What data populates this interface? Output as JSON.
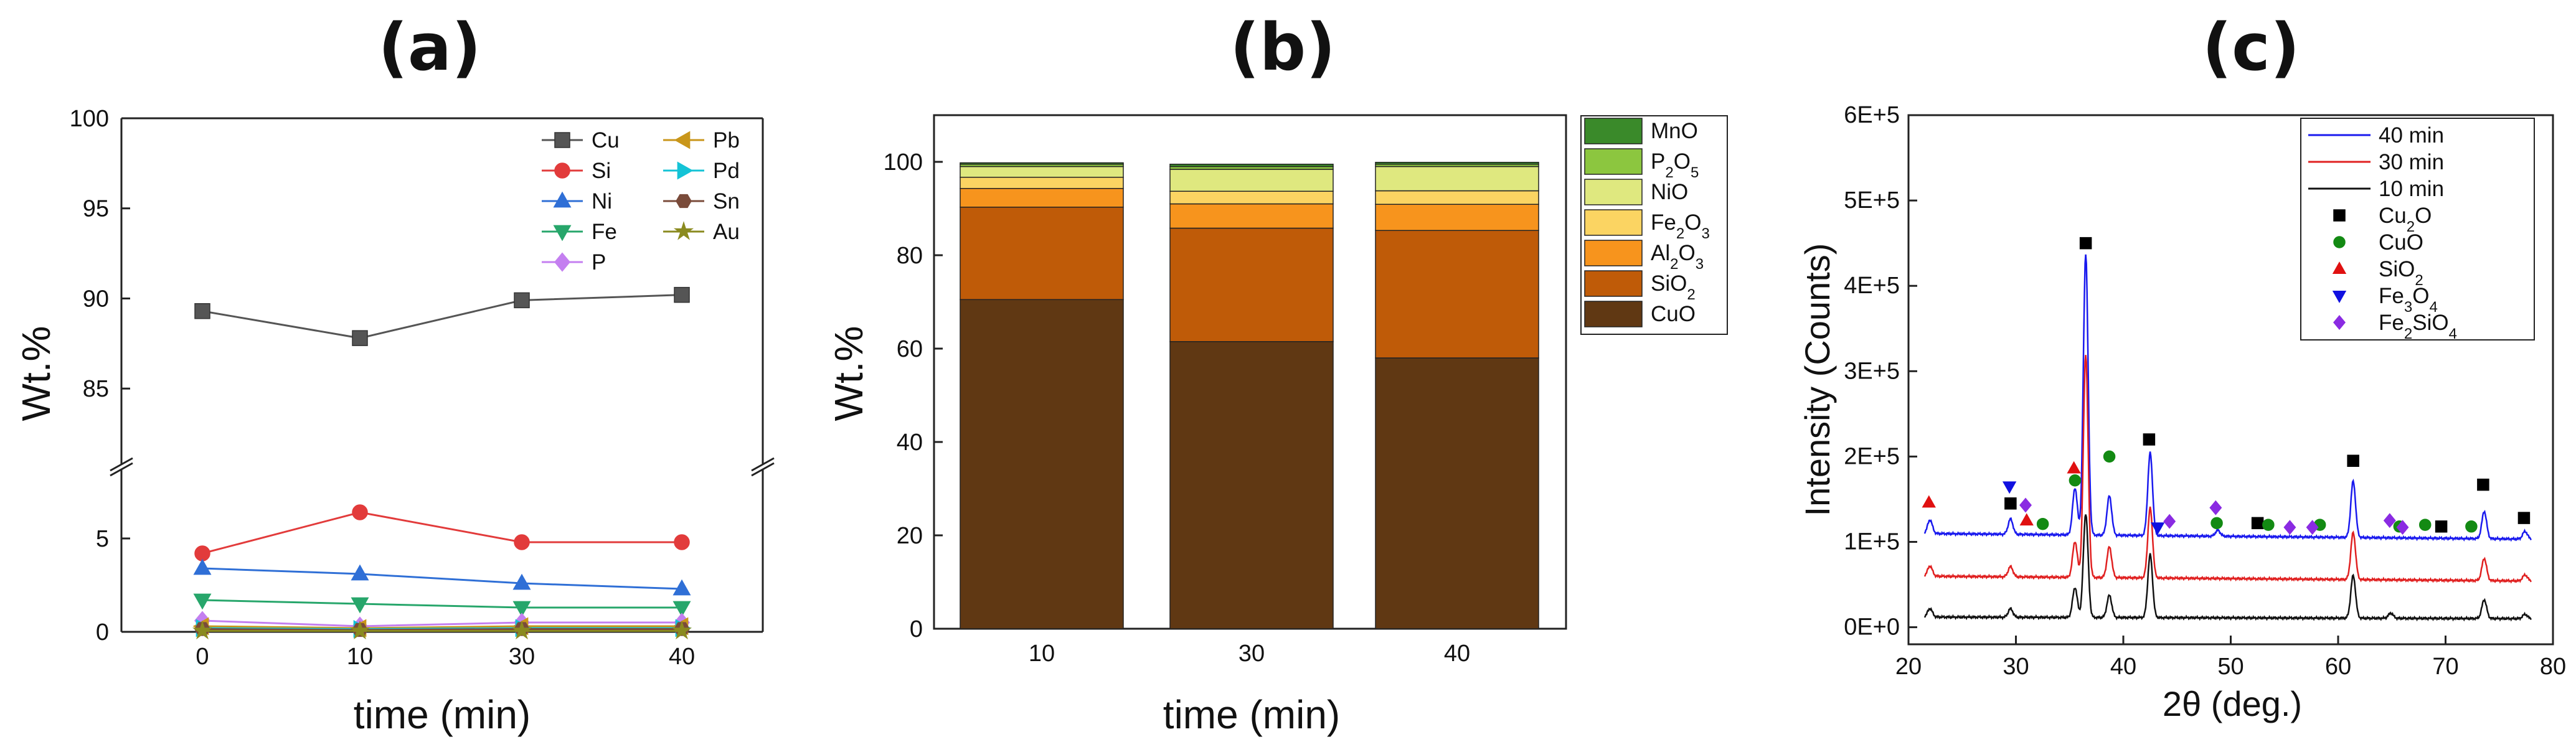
{
  "figure": {
    "panel_labels": [
      "(a)",
      "(b)",
      "(c)"
    ]
  },
  "colors": {
    "a": {
      "Cu": "#555555",
      "Si": "#e23b3b",
      "Ni": "#2f6fd6",
      "Fe": "#27a66b",
      "P": "#c47ff0",
      "Pb": "#c9961a",
      "Pd": "#14c3d6",
      "Sn": "#7a4b3a",
      "Au": "#8a8a1f"
    },
    "b": {
      "CuO": "#603813",
      "SiO2": "#bf5b08",
      "Al2O3": "#f7941d",
      "Fe2O3": "#fbd462",
      "NiO": "#dfe87f",
      "P2O5": "#8cc63f",
      "MnO": "#3a8a2a"
    },
    "c": {
      "40 min": "#1a1aee",
      "30 min": "#e02020",
      "10 min": "#111111",
      "Cu2O": "#000000",
      "CuO": "#138a13",
      "SiO2": "#e01010",
      "Fe3O4": "#1010e0",
      "Fe2SiO4": "#8a2be2"
    }
  },
  "chart_data": [
    {
      "type": "line",
      "panel": "(a)",
      "title": "(a)",
      "xlabel": "time (min)",
      "ylabel": "Wt.%",
      "categories": [
        "0",
        "10",
        "30",
        "40"
      ],
      "axis_break": {
        "lower_range": [
          0,
          8.5
        ],
        "upper_range": [
          81,
          100
        ]
      },
      "yticks_lower": [
        "0",
        "5"
      ],
      "yticks_upper": [
        "85",
        "90",
        "95",
        "100"
      ],
      "series": [
        {
          "name": "Cu",
          "marker": "square",
          "values": [
            89.3,
            87.8,
            89.9,
            90.2
          ]
        },
        {
          "name": "Si",
          "marker": "circle",
          "values": [
            4.2,
            6.4,
            4.8,
            4.8
          ]
        },
        {
          "name": "Ni",
          "marker": "triangle-up",
          "values": [
            3.4,
            3.1,
            2.6,
            2.3
          ]
        },
        {
          "name": "Fe",
          "marker": "triangle-down",
          "values": [
            1.7,
            1.5,
            1.3,
            1.3
          ]
        },
        {
          "name": "P",
          "marker": "diamond",
          "values": [
            0.6,
            0.3,
            0.5,
            0.5
          ]
        },
        {
          "name": "Pb",
          "marker": "triangle-left",
          "values": [
            0.3,
            0.2,
            0.3,
            0.3
          ]
        },
        {
          "name": "Pd",
          "marker": "triangle-right",
          "values": [
            0.2,
            0.15,
            0.2,
            0.2
          ]
        },
        {
          "name": "Sn",
          "marker": "hexagon",
          "values": [
            0.15,
            0.1,
            0.15,
            0.15
          ]
        },
        {
          "name": "Au",
          "marker": "star",
          "values": [
            0.05,
            0.05,
            0.05,
            0.05
          ]
        }
      ],
      "legend_left": [
        "Cu",
        "Si",
        "Ni",
        "Fe",
        "P"
      ],
      "legend_right": [
        "Pb",
        "Pd",
        "Sn",
        "Au"
      ],
      "legend_position": "top-right"
    },
    {
      "type": "bar",
      "stacked": true,
      "panel": "(b)",
      "title": "(b)",
      "xlabel": "time (min)",
      "ylabel": "Wt.%",
      "categories": [
        "10",
        "30",
        "40"
      ],
      "ylim": [
        0,
        110
      ],
      "yticks": [
        0,
        20,
        40,
        60,
        80,
        100
      ],
      "series": [
        {
          "key": "CuO",
          "name": "CuO",
          "sub": "",
          "values": [
            70.5,
            61.5,
            58.0
          ]
        },
        {
          "key": "SiO2",
          "name": "SiO",
          "sub": "2",
          "values": [
            19.8,
            24.3,
            27.3
          ]
        },
        {
          "key": "Al2O3",
          "name": "Al",
          "sub": "2",
          "name2": "O",
          "sub2": "3",
          "values": [
            4.0,
            5.2,
            5.6
          ]
        },
        {
          "key": "Fe2O3",
          "name": "Fe",
          "sub": "2",
          "name2": "O",
          "sub2": "3",
          "values": [
            2.4,
            2.7,
            2.9
          ]
        },
        {
          "key": "NiO",
          "name": "NiO",
          "sub": "",
          "values": [
            2.3,
            4.7,
            5.2
          ]
        },
        {
          "key": "P2O5",
          "name": "P",
          "sub": "2",
          "name2": "O",
          "sub2": "5",
          "values": [
            0.5,
            0.6,
            0.5
          ]
        },
        {
          "key": "MnO",
          "name": "MnO",
          "sub": "",
          "values": [
            0.3,
            0.5,
            0.4
          ]
        }
      ],
      "legend_order": [
        "MnO",
        "P2O5",
        "NiO",
        "Fe2O3",
        "Al2O3",
        "SiO2",
        "CuO"
      ],
      "legend_position": "right"
    },
    {
      "type": "line",
      "panel": "(c)",
      "title": "(c)",
      "xlabel": "2θ (deg.)",
      "ylabel": "Intensity (Counts)",
      "xlim": [
        20,
        80
      ],
      "xticks": [
        20,
        30,
        40,
        50,
        60,
        70,
        80
      ],
      "ylim": [
        -20000,
        600000
      ],
      "yticks": [
        0,
        100000,
        200000,
        300000,
        400000,
        500000,
        600000
      ],
      "ytick_labels": [
        "0E+0",
        "1E+5",
        "2E+5",
        "3E+5",
        "4E+5",
        "5E+5",
        "6E+5"
      ],
      "series": [
        {
          "name": "40 min",
          "offset": 110000,
          "baseline_slope": -7000,
          "peaks": [
            [
              22.0,
              16000
            ],
            [
              29.5,
              18000
            ],
            [
              35.5,
              55000
            ],
            [
              36.5,
              330000
            ],
            [
              38.7,
              46000
            ],
            [
              42.5,
              97000
            ],
            [
              48.8,
              7000
            ],
            [
              61.4,
              66000
            ],
            [
              73.6,
              32000
            ],
            [
              77.4,
              9000
            ]
          ]
        },
        {
          "name": "30 min",
          "offset": 60000,
          "baseline_slope": -6000,
          "peaks": [
            [
              22.0,
              12000
            ],
            [
              29.5,
              12000
            ],
            [
              35.5,
              42000
            ],
            [
              36.5,
              262000
            ],
            [
              38.7,
              36000
            ],
            [
              42.5,
              82000
            ],
            [
              61.4,
              55000
            ],
            [
              73.6,
              26000
            ],
            [
              77.4,
              7000
            ]
          ]
        },
        {
          "name": "10 min",
          "offset": 12000,
          "baseline_slope": -2000,
          "peaks": [
            [
              22.0,
              10000
            ],
            [
              29.5,
              10000
            ],
            [
              35.5,
              35000
            ],
            [
              36.5,
              122000
            ],
            [
              38.7,
              26000
            ],
            [
              42.5,
              74000
            ],
            [
              61.4,
              50000
            ],
            [
              64.9,
              6000
            ],
            [
              73.6,
              22000
            ],
            [
              77.4,
              5000
            ]
          ]
        }
      ],
      "phase_markers": [
        {
          "key": "Cu2O",
          "name": "Cu",
          "sub": "2",
          "name2": "O",
          "sub2": "",
          "shape": "square",
          "points": [
            [
              29.5,
              145000
            ],
            [
              36.5,
              450000
            ],
            [
              42.4,
              220000
            ],
            [
              52.5,
              122000
            ],
            [
              61.4,
              195000
            ],
            [
              69.6,
              118000
            ],
            [
              73.5,
              167000
            ],
            [
              77.3,
              128000
            ]
          ]
        },
        {
          "key": "CuO",
          "name": "CuO",
          "sub": "",
          "name2": "",
          "sub2": "",
          "shape": "circle",
          "points": [
            [
              32.5,
              121000
            ],
            [
              35.5,
              172000
            ],
            [
              38.7,
              200000
            ],
            [
              48.7,
              122000
            ],
            [
              53.5,
              120000
            ],
            [
              58.3,
              120000
            ],
            [
              65.7,
              118000
            ],
            [
              68.1,
              120000
            ],
            [
              72.4,
              118000
            ]
          ]
        },
        {
          "key": "SiO2",
          "name": "SiO",
          "sub": "2",
          "name2": "",
          "sub2": "",
          "shape": "triangle-up",
          "points": [
            [
              21.9,
              146000
            ],
            [
              31.0,
              125000
            ],
            [
              35.4,
              186000
            ]
          ]
        },
        {
          "key": "Fe3O4",
          "name": "Fe",
          "sub": "3",
          "name2": "O",
          "sub2": "4",
          "shape": "triangle-down",
          "points": [
            [
              29.4,
              165000
            ],
            [
              43.2,
              117000
            ]
          ]
        },
        {
          "key": "Fe2SiO4",
          "name": "Fe",
          "sub": "2",
          "name2": "SiO",
          "sub2": "4",
          "shape": "diamond",
          "points": [
            [
              30.9,
              143000
            ],
            [
              44.3,
              124000
            ],
            [
              48.6,
              140000
            ],
            [
              55.5,
              117000
            ],
            [
              57.6,
              117000
            ],
            [
              64.8,
              125000
            ],
            [
              66.0,
              117000
            ]
          ]
        }
      ],
      "legend_position": "top-right"
    }
  ]
}
